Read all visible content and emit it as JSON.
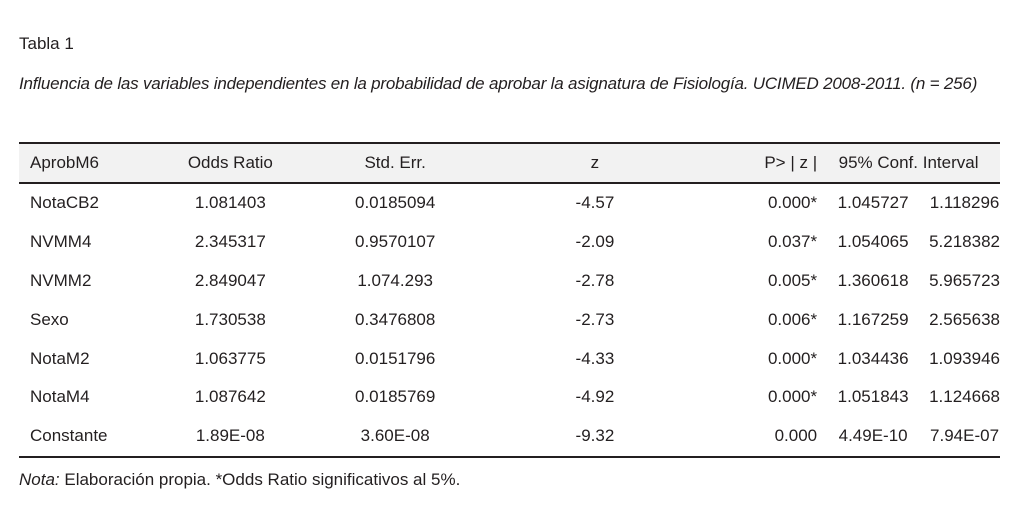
{
  "table_label": "Tabla 1",
  "caption": "Influencia de las variables independientes en la probabilidad de aprobar la asignatura de Fisiología. UCIMED 2008-2011. (n = 256)",
  "headers": {
    "variable": "AprobM6",
    "odds_ratio": "Odds Ratio",
    "std_err": "Std. Err.",
    "z": "z",
    "p": "P> | z |",
    "ci": "95% Conf. Interval"
  },
  "rows": [
    {
      "variable": "NotaCB2",
      "odds_ratio": "1.081403",
      "std_err": "0.0185094",
      "z": "-4.57",
      "p": "0.000*",
      "ci_low": "1.045727",
      "ci_high": "1.118296"
    },
    {
      "variable": "NVMM4",
      "odds_ratio": "2.345317",
      "std_err": "0.9570107",
      "z": "-2.09",
      "p": "0.037*",
      "ci_low": "1.054065",
      "ci_high": "5.218382"
    },
    {
      "variable": "NVMM2",
      "odds_ratio": "2.849047",
      "std_err": "1.074.293",
      "z": "-2.78",
      "p": "0.005*",
      "ci_low": "1.360618",
      "ci_high": "5.965723"
    },
    {
      "variable": "Sexo",
      "odds_ratio": "1.730538",
      "std_err": "0.3476808",
      "z": "-2.73",
      "p": "0.006*",
      "ci_low": "1.167259",
      "ci_high": "2.565638"
    },
    {
      "variable": "NotaM2",
      "odds_ratio": "1.063775",
      "std_err": "0.0151796",
      "z": "-4.33",
      "p": "0.000*",
      "ci_low": "1.034436",
      "ci_high": "1.093946"
    },
    {
      "variable": "NotaM4",
      "odds_ratio": "1.087642",
      "std_err": "0.0185769",
      "z": "-4.92",
      "p": "0.000*",
      "ci_low": "1.051843",
      "ci_high": "1.124668"
    },
    {
      "variable": "Constante",
      "odds_ratio": "1.89E-08",
      "std_err": "3.60E-08",
      "z": "-9.32",
      "p": "0.000",
      "ci_low": "4.49E-10",
      "ci_high": "7.94E-07"
    }
  ],
  "note": {
    "label": "Nota:",
    "text": " Elaboración propia. *Odds Ratio significativos al 5%."
  }
}
